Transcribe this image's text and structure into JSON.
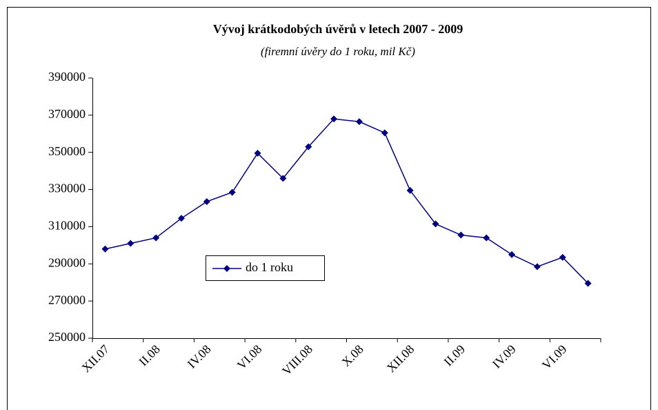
{
  "chart_data": {
    "type": "line",
    "title": "Vývoj krátkodobých úvěrů v letech 2007 - 2009",
    "subtitle": "(firemní úvěry do 1 roku, mil Kč)",
    "categories": [
      "XII.07",
      null,
      "II.08",
      null,
      "IV.08",
      null,
      "VI.08",
      null,
      "VIII.08",
      null,
      "X.08",
      null,
      "XII.08",
      null,
      "II.09",
      null,
      "IV.09",
      null,
      "VI.09",
      null
    ],
    "series": [
      {
        "name": "do 1 roku",
        "color": "#000080",
        "values": [
          298000,
          301000,
          304000,
          314500,
          323500,
          328500,
          349500,
          336000,
          353000,
          368000,
          366500,
          360500,
          329500,
          311500,
          305500,
          304000,
          295000,
          288500,
          293500,
          279500
        ]
      }
    ],
    "ylim": [
      250000,
      390000
    ],
    "yticks": [
      250000,
      270000,
      290000,
      310000,
      330000,
      350000,
      370000,
      390000
    ],
    "grid": false
  }
}
